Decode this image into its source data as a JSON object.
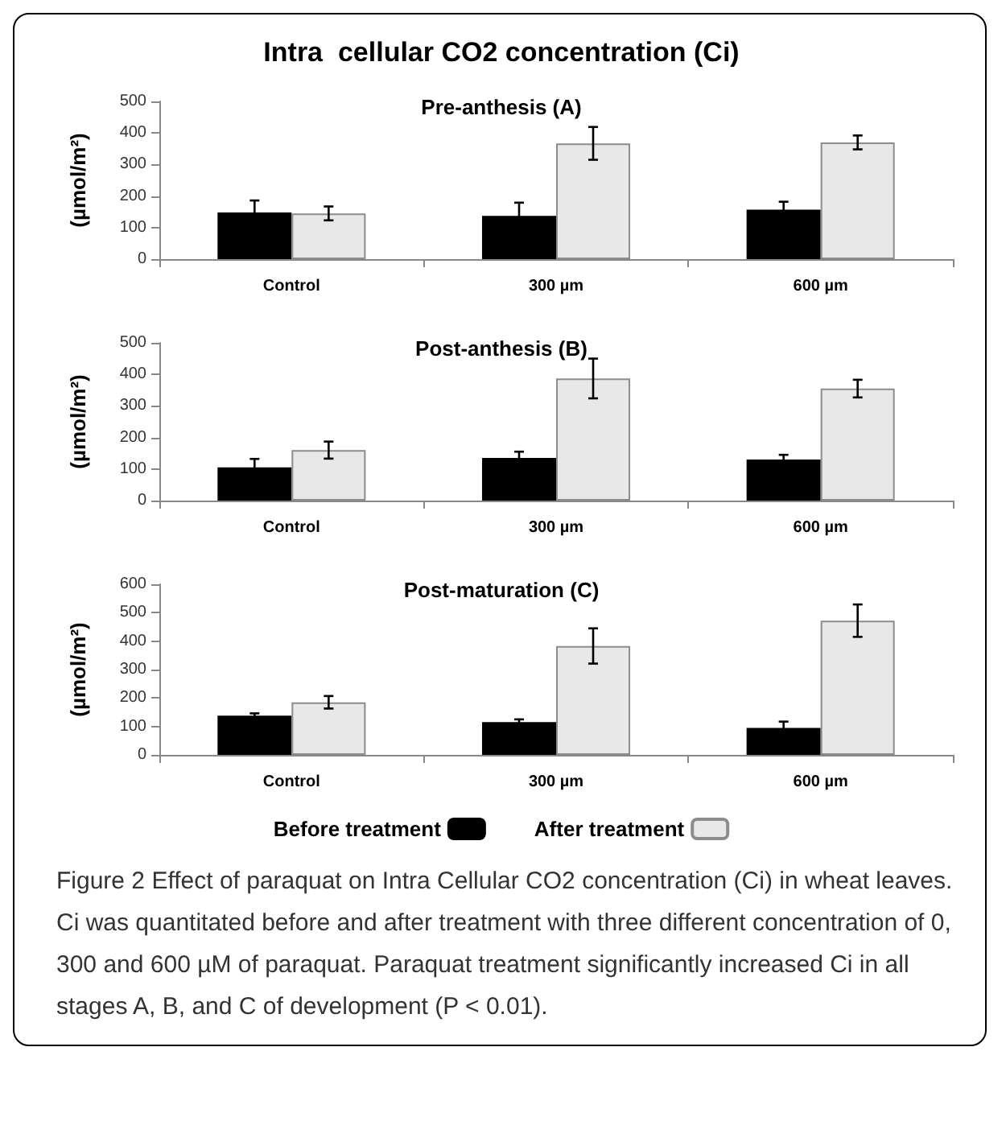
{
  "chart_data": [
    {
      "type": "bar",
      "title": "Intra  cellular CO2 concentration (Ci)",
      "subtitle": "Pre-anthesis (A)",
      "ylabel": "(µmol/m²)",
      "categories": [
        "Control",
        "300 µm",
        "600 µm"
      ],
      "series": [
        {
          "color": "#000000",
          "values": [
            148,
            137,
            157
          ],
          "errors": [
            38,
            42,
            25
          ]
        },
        {
          "color": "#e8e8e8",
          "values": [
            145,
            367,
            370
          ],
          "errors": [
            22,
            52,
            22
          ]
        }
      ],
      "ylim": [
        0,
        500
      ],
      "yticks": [
        0,
        100,
        200,
        300,
        400,
        500
      ],
      "grid": false,
      "legend": false
    },
    {
      "type": "bar",
      "subtitle": "Post-anthesis (B)",
      "ylabel": "(µmol/m²)",
      "categories": [
        "Control",
        "300 µm",
        "600 µm"
      ],
      "series": [
        {
          "color": "#000000",
          "values": [
            105,
            135,
            130
          ],
          "errors": [
            27,
            20,
            15
          ]
        },
        {
          "color": "#e8e8e8",
          "values": [
            160,
            387,
            355
          ],
          "errors": [
            27,
            63,
            28
          ]
        }
      ],
      "ylim": [
        0,
        500
      ],
      "yticks": [
        0,
        100,
        200,
        300,
        400,
        500
      ],
      "grid": false,
      "legend": false
    },
    {
      "type": "bar",
      "subtitle": "Post-maturation (C)",
      "ylabel": "(µmol/m²)",
      "categories": [
        "Control",
        "300 µm",
        "600 µm"
      ],
      "series": [
        {
          "name": "Before treatment",
          "color": "#000000",
          "values": [
            138,
            115,
            95
          ],
          "errors": [
            8,
            10,
            22
          ]
        },
        {
          "name": "After treatment",
          "color": "#e8e8e8",
          "values": [
            185,
            383,
            472
          ],
          "errors": [
            22,
            62,
            57
          ]
        }
      ],
      "ylim": [
        0,
        600
      ],
      "yticks": [
        0,
        100,
        200,
        300,
        400,
        500,
        600
      ],
      "grid": false,
      "legend": "bottom",
      "annotations": [
        "Figure 2 Effect of paraquat on Intra Cellular CO2 concentration (Ci) in wheat leaves. Ci was quantitated before and after treatment with three different concentration of 0, 300 and 600 µM of paraquat. Paraquat treatment significantly increased Ci in all stages A, B, and C of development (P < 0.01)."
      ]
    }
  ]
}
